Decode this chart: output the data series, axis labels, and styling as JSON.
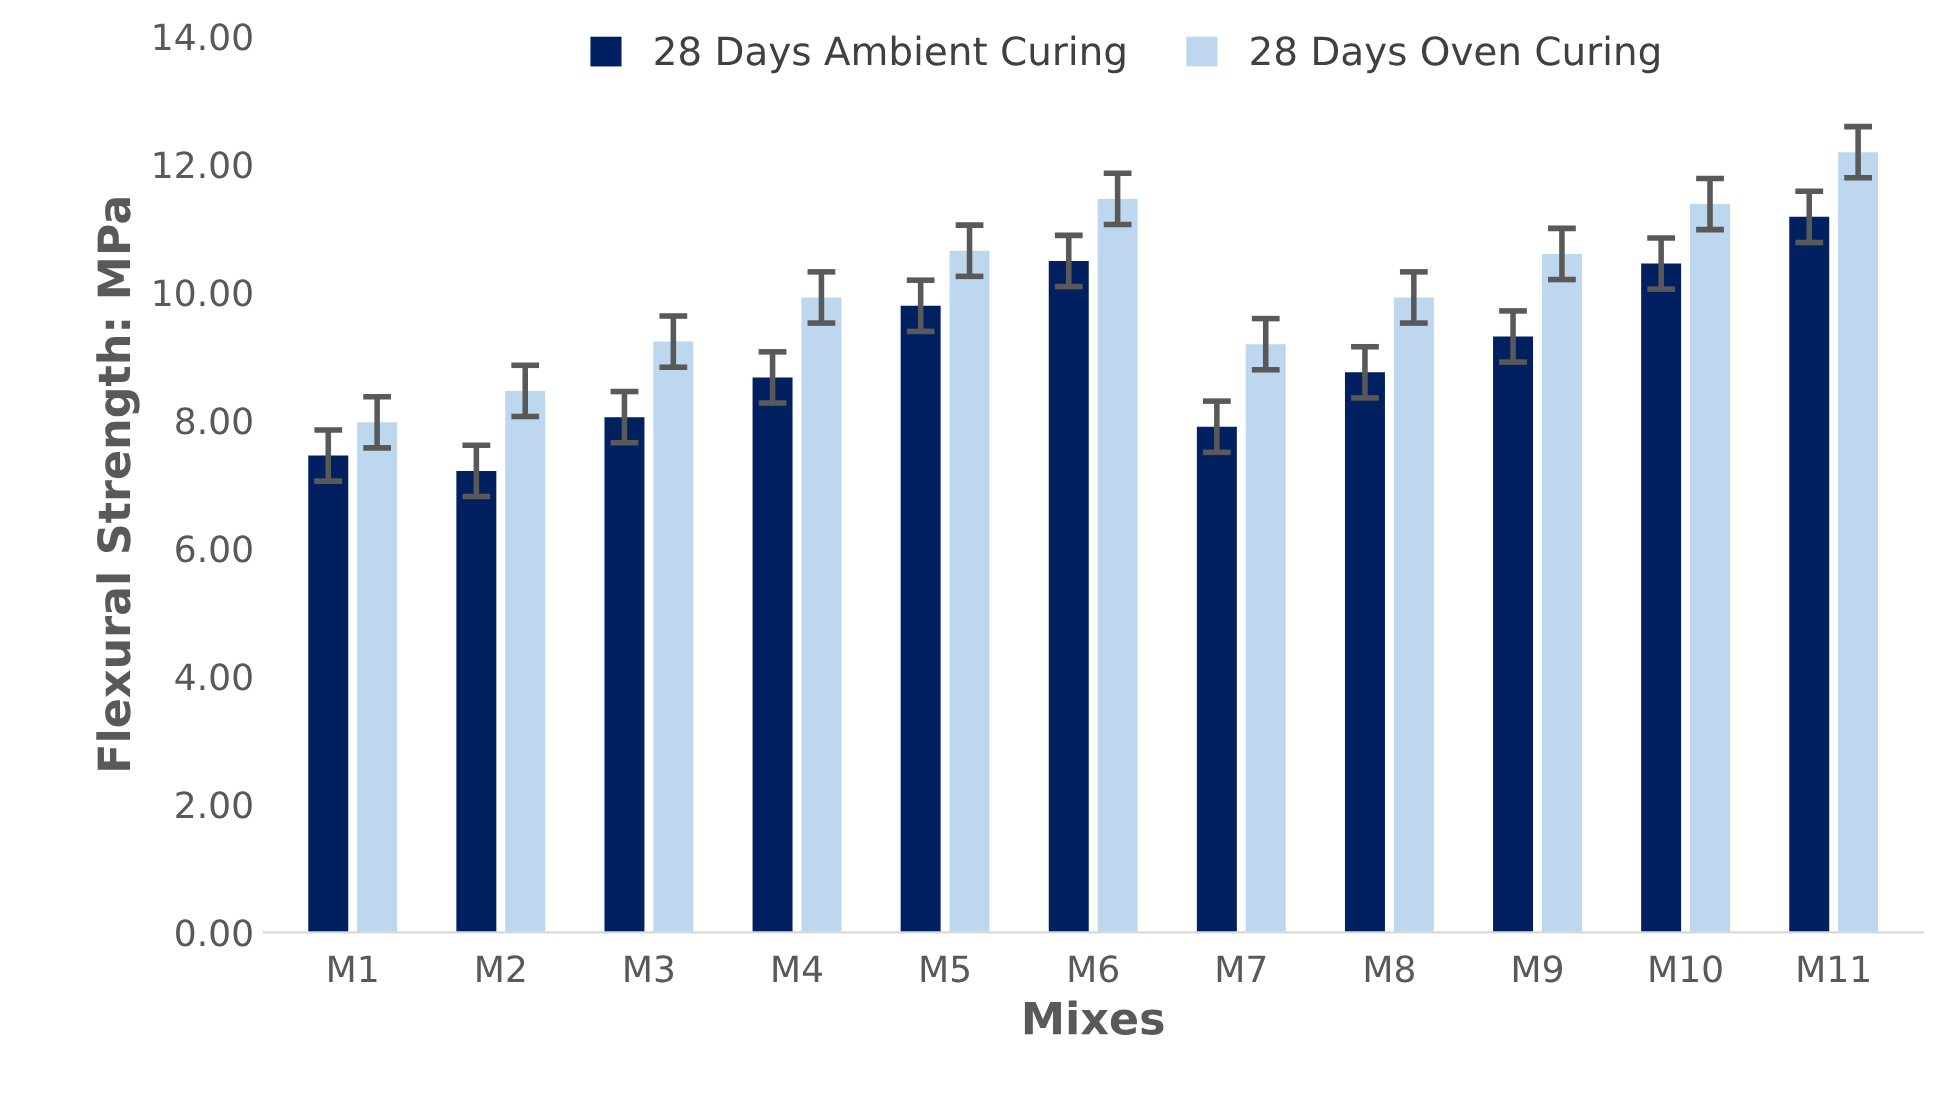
{
  "chart_data": {
    "type": "bar",
    "xlabel": "Mixes",
    "ylabel": "Flexural Strength: MPa",
    "categories": [
      "M1",
      "M2",
      "M3",
      "M4",
      "M5",
      "M6",
      "M7",
      "M8",
      "M9",
      "M10",
      "M11"
    ],
    "series": [
      {
        "name": "28 Days Ambient Curing",
        "color": "#002060",
        "values": [
          7.45,
          7.21,
          8.05,
          8.67,
          9.79,
          10.49,
          7.9,
          8.75,
          9.31,
          10.45,
          11.18
        ],
        "errors": [
          0.4,
          0.4,
          0.4,
          0.4,
          0.4,
          0.4,
          0.4,
          0.4,
          0.4,
          0.4,
          0.4
        ]
      },
      {
        "name": "28 Days Oven Curing",
        "color": "#bdd7ee",
        "values": [
          7.97,
          8.46,
          9.23,
          9.92,
          10.65,
          11.46,
          9.19,
          9.92,
          10.6,
          11.38,
          12.19
        ],
        "errors": [
          0.4,
          0.4,
          0.4,
          0.4,
          0.4,
          0.4,
          0.4,
          0.4,
          0.4,
          0.4,
          0.4
        ]
      }
    ],
    "ylim": [
      0,
      14
    ],
    "yticks": [
      {
        "value": 0,
        "label": "0.00"
      },
      {
        "value": 2,
        "label": "2.00"
      },
      {
        "value": 4,
        "label": "4.00"
      },
      {
        "value": 6,
        "label": "6.00"
      },
      {
        "value": 8,
        "label": "8.00"
      },
      {
        "value": 10,
        "label": "10.00"
      },
      {
        "value": 12,
        "label": "12.00"
      },
      {
        "value": 14,
        "label": "14.00"
      }
    ],
    "grid": false,
    "legend": "top"
  }
}
